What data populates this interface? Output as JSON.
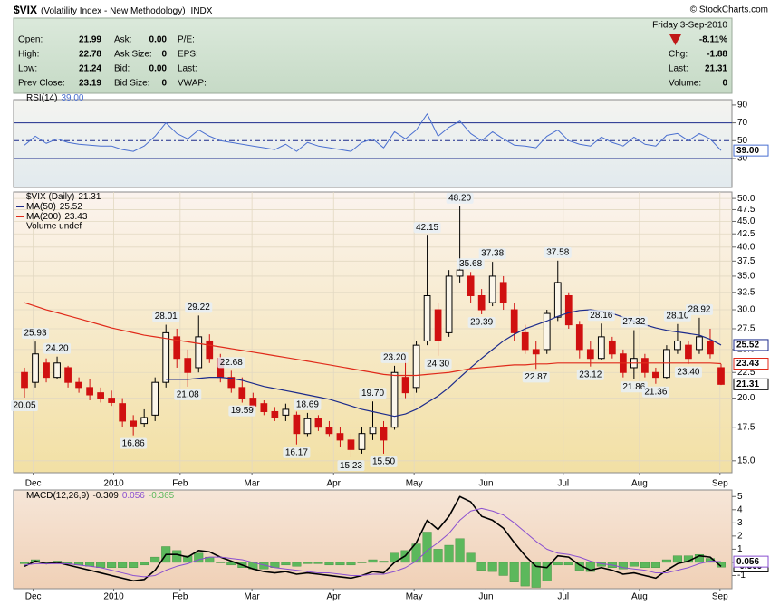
{
  "header": {
    "symbol": "$VIX",
    "name": "(Volatility Index - New Methodology)",
    "exchange": "INDX",
    "credit": "© StockCharts.com",
    "date": "Friday  3-Sep-2010",
    "change_pct": "-8.11%",
    "col1": [
      [
        "Open:",
        "21.99"
      ],
      [
        "High:",
        "22.78"
      ],
      [
        "Low:",
        "21.24"
      ],
      [
        "Prev Close:",
        "23.19"
      ]
    ],
    "col2": [
      [
        "Ask:",
        "0.00"
      ],
      [
        "Ask Size:",
        "0"
      ],
      [
        "Bid:",
        "0.00"
      ],
      [
        "Bid Size:",
        "0"
      ]
    ],
    "col3": [
      "P/E:",
      "EPS:",
      "Last:",
      "VWAP:"
    ],
    "col4": [
      [
        "Chg:",
        "-1.88"
      ],
      [
        "Last:",
        "21.31"
      ],
      [
        "Volume:",
        "0"
      ]
    ]
  },
  "chart_data": [
    {
      "type": "line",
      "xlim": [
        -1,
        65
      ],
      "ylim": [
        -2.5,
        96
      ],
      "yticks": [
        90,
        70,
        50,
        30
      ],
      "grid": false,
      "reference_lines": [
        {
          "value": 70,
          "style": "solid",
          "color": "#1c2b8c"
        },
        {
          "value": 50,
          "style": "dashdot",
          "color": "#1c2b8c"
        },
        {
          "value": 30,
          "style": "solid",
          "color": "#1c2b8c"
        }
      ],
      "series": [
        {
          "name": "RSI(14)",
          "color": "#4a6fd0",
          "last_label": "39.00",
          "values": [
            45,
            55,
            47,
            52,
            48,
            46,
            45,
            44,
            44,
            40,
            38,
            44,
            55,
            70,
            58,
            52,
            62,
            55,
            50,
            48,
            46,
            44,
            42,
            40,
            46,
            38,
            48,
            44,
            42,
            40,
            38,
            48,
            52,
            42,
            60,
            52,
            62,
            80,
            55,
            65,
            72,
            58,
            50,
            60,
            52,
            45,
            44,
            42,
            55,
            62,
            50,
            46,
            44,
            54,
            48,
            44,
            54,
            46,
            44,
            56,
            58,
            50,
            58,
            52,
            39
          ]
        }
      ]
    },
    {
      "type": "candlestick",
      "title": "$VIX (Daily)",
      "log_scale": true,
      "grid": true,
      "xlim": [
        -1,
        65
      ],
      "ylim": [
        14.2,
        51.5
      ],
      "yticks": [
        {
          "value": 15,
          "label": "15.0"
        },
        {
          "value": 17.5,
          "label": "17.5"
        },
        {
          "value": 20,
          "label": "20.0"
        },
        {
          "value": 22.5,
          "label": "22.5"
        },
        {
          "value": 25,
          "label": "25.0"
        },
        {
          "value": 27.5,
          "label": "27.5"
        },
        {
          "value": 30,
          "label": "30.0"
        },
        {
          "value": 32.5,
          "label": "32.5"
        },
        {
          "value": 35,
          "label": "35.0"
        },
        {
          "value": 37.5,
          "label": "37.5"
        },
        {
          "value": 40,
          "label": "40.0"
        },
        {
          "value": 42.5,
          "label": "42.5"
        },
        {
          "value": 45,
          "label": "45.0"
        },
        {
          "value": 47.5,
          "label": "47.5"
        },
        {
          "value": 50,
          "label": "50.0"
        }
      ],
      "xticks": [
        {
          "value": 0.8,
          "label": "Dec"
        },
        {
          "value": 8.2,
          "label": "2010"
        },
        {
          "value": 14.3,
          "label": "Feb"
        },
        {
          "value": 20.9,
          "label": "Mar"
        },
        {
          "value": 28.4,
          "label": "Apr"
        },
        {
          "value": 35.8,
          "label": "May"
        },
        {
          "value": 42.4,
          "label": "Jun"
        },
        {
          "value": 49.5,
          "label": "Jul"
        },
        {
          "value": 56.5,
          "label": "Aug"
        },
        {
          "value": 63.9,
          "label": "Sep"
        }
      ],
      "up_color": "#000000",
      "down_color": "#d01010",
      "volume_label": "Volume undef",
      "volume_color": "#2a8a2a",
      "open": [
        22.5,
        21.5,
        23.5,
        22.0,
        23.0,
        21.5,
        21.0,
        20.5,
        20.0,
        19.5,
        18.0,
        17.8,
        18.5,
        21.5,
        26.5,
        24.0,
        23.0,
        26.0,
        24.0,
        22.0,
        21.0,
        20.0,
        19.5,
        18.8,
        18.5,
        18.5,
        17.0,
        18.2,
        17.5,
        17.0,
        16.5,
        15.8,
        17.0,
        17.5,
        17.5,
        22.0,
        21.0,
        26.0,
        30.0,
        27.0,
        35.0,
        35.0,
        32.0,
        31.0,
        34.0,
        30.0,
        27.0,
        25.0,
        25.0,
        29.0,
        32.0,
        28.0,
        25.0,
        24.0,
        26.0,
        24.5,
        23.0,
        24.0,
        22.5,
        22.0,
        25.0,
        25.5,
        25.0,
        26.0,
        23.0
      ],
      "high": [
        23.0,
        25.93,
        24.0,
        24.2,
        23.2,
        22.0,
        21.8,
        21.0,
        20.7,
        20.0,
        18.5,
        19.0,
        22.0,
        28.01,
        27.5,
        25.0,
        29.22,
        26.8,
        24.5,
        22.68,
        22.0,
        20.5,
        19.8,
        19.2,
        19.5,
        18.8,
        18.69,
        18.5,
        18.0,
        17.5,
        17.0,
        17.5,
        19.7,
        18.0,
        23.2,
        24.0,
        26.0,
        42.15,
        31.0,
        36.0,
        48.2,
        35.68,
        33.0,
        37.38,
        35.0,
        31.0,
        28.0,
        26.0,
        30.0,
        37.58,
        32.5,
        28.5,
        26.0,
        28.16,
        26.5,
        25.0,
        27.32,
        24.5,
        23.0,
        25.5,
        28.1,
        26.0,
        28.92,
        27.5,
        23.4
      ],
      "low": [
        20.05,
        21.0,
        21.5,
        21.8,
        21.0,
        20.5,
        19.8,
        19.6,
        19.3,
        17.5,
        16.86,
        17.5,
        18.0,
        21.0,
        23.0,
        21.08,
        22.5,
        23.5,
        21.5,
        20.5,
        19.59,
        19.0,
        18.5,
        18.0,
        18.0,
        16.17,
        16.8,
        17.2,
        16.8,
        16.0,
        15.23,
        15.5,
        16.5,
        15.5,
        17.3,
        20.0,
        20.5,
        25.5,
        24.3,
        26.5,
        34.0,
        31.0,
        29.39,
        30.5,
        30.0,
        26.0,
        24.5,
        22.87,
        24.5,
        28.5,
        27.5,
        24.0,
        23.12,
        23.8,
        24.0,
        22.0,
        21.86,
        22.0,
        21.36,
        21.8,
        24.5,
        23.4,
        24.5,
        24.0,
        21.24
      ],
      "close": [
        21.0,
        24.5,
        22.0,
        23.5,
        21.5,
        21.0,
        20.3,
        20.0,
        19.6,
        18.0,
        17.6,
        18.3,
        21.5,
        27.0,
        24.0,
        22.5,
        26.5,
        24.0,
        22.0,
        21.0,
        20.0,
        19.3,
        18.8,
        18.3,
        19.0,
        17.0,
        18.2,
        17.5,
        17.0,
        16.5,
        15.8,
        17.0,
        17.5,
        16.5,
        22.5,
        20.5,
        25.5,
        32.0,
        26.0,
        35.0,
        36.0,
        32.0,
        30.0,
        35.0,
        31.0,
        27.0,
        25.0,
        24.5,
        29.5,
        34.0,
        28.0,
        25.0,
        24.0,
        26.5,
        24.5,
        22.5,
        24.0,
        22.5,
        22.0,
        25.0,
        26.0,
        24.0,
        26.5,
        24.5,
        21.31
      ],
      "high_labels": [
        null,
        "25.93",
        null,
        "24.20",
        null,
        null,
        null,
        null,
        null,
        null,
        null,
        null,
        null,
        "28.01",
        null,
        null,
        "29.22",
        null,
        null,
        "22.68",
        null,
        null,
        null,
        null,
        null,
        null,
        "18.69",
        null,
        null,
        null,
        null,
        null,
        "19.70",
        null,
        "23.20",
        null,
        null,
        "42.15",
        null,
        null,
        "48.20",
        "35.68",
        null,
        "37.38",
        null,
        null,
        null,
        null,
        null,
        "37.58",
        null,
        null,
        null,
        "28.16",
        null,
        null,
        "27.32",
        null,
        null,
        null,
        "28.10",
        null,
        "28.92",
        null,
        null
      ],
      "low_labels": [
        "20.05",
        null,
        null,
        null,
        null,
        null,
        null,
        null,
        null,
        null,
        "16.86",
        null,
        null,
        null,
        null,
        "21.08",
        null,
        null,
        null,
        null,
        "19.59",
        null,
        null,
        null,
        null,
        "16.17",
        null,
        null,
        null,
        null,
        "15.23",
        null,
        null,
        "15.50",
        null,
        null,
        null,
        null,
        "24.30",
        null,
        null,
        null,
        "29.39",
        null,
        null,
        null,
        null,
        "22.87",
        null,
        null,
        null,
        null,
        "23.12",
        null,
        null,
        null,
        "21.86",
        null,
        "21.36",
        null,
        null,
        "23.40",
        null,
        null,
        null
      ],
      "overlays": [
        {
          "name": "MA(50)",
          "color": "#1c2b8c",
          "values": [
            null,
            null,
            null,
            null,
            null,
            null,
            null,
            null,
            null,
            null,
            null,
            null,
            null,
            21.8,
            21.8,
            21.8,
            21.9,
            22.0,
            22.0,
            21.9,
            21.7,
            21.4,
            21.1,
            20.9,
            20.7,
            20.5,
            20.3,
            20.1,
            19.9,
            19.6,
            19.3,
            19.0,
            18.8,
            18.6,
            18.4,
            18.6,
            19.0,
            19.6,
            20.2,
            21.0,
            22.0,
            23.0,
            24.0,
            25.0,
            26.0,
            26.8,
            27.5,
            28.0,
            28.5,
            29.1,
            29.6,
            29.9,
            30.0,
            29.8,
            29.5,
            29.0,
            28.5,
            28.0,
            27.6,
            27.3,
            27.1,
            26.9,
            26.7,
            26.2,
            25.52
          ]
        },
        {
          "name": "MA(200)",
          "color": "#e02a1a",
          "values": [
            31.0,
            30.5,
            30.0,
            29.6,
            29.2,
            28.8,
            28.4,
            28.0,
            27.6,
            27.3,
            27.0,
            26.7,
            26.5,
            26.3,
            26.1,
            25.9,
            25.7,
            25.5,
            25.3,
            25.1,
            24.9,
            24.7,
            24.5,
            24.3,
            24.1,
            23.9,
            23.7,
            23.5,
            23.3,
            23.1,
            22.9,
            22.7,
            22.5,
            22.3,
            22.2,
            22.2,
            22.2,
            22.3,
            22.4,
            22.5,
            22.7,
            22.9,
            23.0,
            23.1,
            23.2,
            23.3,
            23.3,
            23.4,
            23.4,
            23.5,
            23.5,
            23.5,
            23.5,
            23.5,
            23.5,
            23.5,
            23.5,
            23.5,
            23.5,
            23.5,
            23.5,
            23.5,
            23.5,
            23.5,
            23.43
          ]
        }
      ]
    },
    {
      "type": "line",
      "xlim": [
        -1,
        65
      ],
      "ylim": [
        -2,
        5.5
      ],
      "yticks": [
        5,
        4,
        3,
        2,
        1,
        0,
        -1
      ],
      "grid": false,
      "xticks": [
        {
          "value": 0.8,
          "label": "Dec"
        },
        {
          "value": 8.2,
          "label": "2010"
        },
        {
          "value": 14.3,
          "label": "Feb"
        },
        {
          "value": 20.9,
          "label": "Mar"
        },
        {
          "value": 28.4,
          "label": "Apr"
        },
        {
          "value": 35.8,
          "label": "May"
        },
        {
          "value": 42.4,
          "label": "Jun"
        },
        {
          "value": 49.5,
          "label": "Jul"
        },
        {
          "value": 56.5,
          "label": "Aug"
        },
        {
          "value": 63.9,
          "label": "Sep"
        }
      ],
      "series": [
        {
          "name": "MACD(12,26,9)",
          "color": "#000000",
          "values": [
            -0.3,
            0.1,
            -0.1,
            0.0,
            -0.2,
            -0.4,
            -0.6,
            -0.8,
            -1.0,
            -1.2,
            -1.4,
            -1.3,
            -0.6,
            0.6,
            0.6,
            0.4,
            0.9,
            0.8,
            0.4,
            0.1,
            -0.2,
            -0.5,
            -0.7,
            -0.8,
            -0.7,
            -0.9,
            -0.8,
            -0.9,
            -1.0,
            -1.1,
            -1.2,
            -1.0,
            -0.7,
            -0.8,
            0.0,
            0.5,
            1.5,
            3.2,
            2.5,
            3.5,
            5.0,
            4.6,
            3.5,
            3.2,
            2.6,
            1.5,
            0.5,
            -0.3,
            -0.4,
            0.5,
            0.4,
            -0.2,
            -0.6,
            -0.4,
            -0.6,
            -0.9,
            -0.8,
            -1.0,
            -1.2,
            -0.6,
            -0.1,
            0.1,
            0.5,
            0.4,
            -0.309
          ]
        },
        {
          "color": "#8a4fd0",
          "values": [
            -0.2,
            -0.1,
            -0.1,
            -0.1,
            -0.1,
            -0.2,
            -0.3,
            -0.4,
            -0.6,
            -0.8,
            -1.0,
            -1.1,
            -1.0,
            -0.6,
            -0.3,
            -0.1,
            0.2,
            0.4,
            0.4,
            0.3,
            0.2,
            0.0,
            -0.2,
            -0.4,
            -0.5,
            -0.6,
            -0.7,
            -0.8,
            -0.8,
            -0.9,
            -1.0,
            -1.0,
            -0.9,
            -0.9,
            -0.7,
            -0.4,
            0.1,
            0.9,
            1.5,
            2.2,
            3.2,
            3.9,
            4.1,
            3.9,
            3.6,
            3.0,
            2.3,
            1.6,
            1.0,
            0.7,
            0.6,
            0.4,
            0.1,
            -0.1,
            -0.2,
            -0.4,
            -0.5,
            -0.6,
            -0.8,
            -0.8,
            -0.6,
            -0.4,
            -0.1,
            0.1,
            0.056
          ]
        },
        {
          "type": "bar",
          "color": "#5cb85c",
          "values": [
            -0.1,
            0.2,
            0.0,
            0.1,
            -0.1,
            -0.2,
            -0.3,
            -0.4,
            -0.4,
            -0.4,
            -0.4,
            -0.2,
            0.4,
            1.2,
            0.9,
            0.5,
            0.7,
            0.4,
            0.0,
            -0.2,
            -0.4,
            -0.5,
            -0.5,
            -0.4,
            -0.2,
            -0.3,
            -0.1,
            -0.1,
            -0.2,
            -0.2,
            -0.2,
            0.0,
            0.2,
            0.1,
            0.7,
            0.9,
            1.4,
            2.3,
            1.0,
            1.3,
            1.8,
            0.7,
            -0.6,
            -0.7,
            -1.0,
            -1.5,
            -1.8,
            -1.9,
            -1.4,
            -0.2,
            -0.2,
            -0.6,
            -0.7,
            -0.3,
            -0.4,
            -0.5,
            -0.3,
            -0.4,
            -0.4,
            0.2,
            0.5,
            0.5,
            0.6,
            0.3,
            -0.365
          ]
        }
      ]
    }
  ]
}
